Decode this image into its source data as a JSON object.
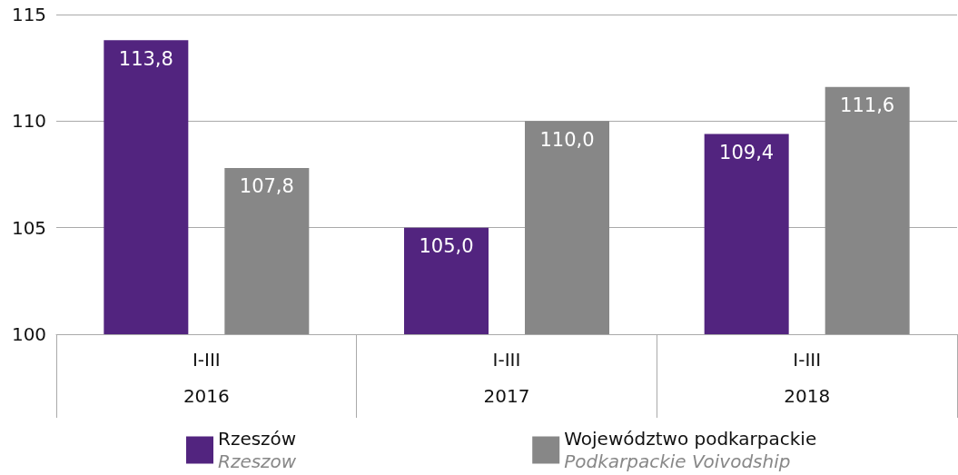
{
  "chart_data": {
    "type": "bar",
    "categories": [
      "I-III\n2016",
      "I-III\n2017",
      "I-III\n2018"
    ],
    "series": [
      {
        "name": "Rzeszów\nRzeszow",
        "color": "#52247f",
        "values": [
          113.8,
          105.0,
          109.4
        ],
        "value_labels": [
          "113,8",
          "105,0",
          "109,4"
        ]
      },
      {
        "name": "Województwo podkarpackie\nPodkarpackie Voivodship",
        "color": "#878787",
        "values": [
          107.8,
          110.0,
          111.6
        ],
        "value_labels": [
          "107,8",
          "110,0",
          "111,6"
        ]
      }
    ],
    "ylim": [
      100,
      115
    ],
    "yticks": [
      100,
      105,
      110,
      115
    ],
    "grid": "y",
    "legend": "bottom"
  }
}
